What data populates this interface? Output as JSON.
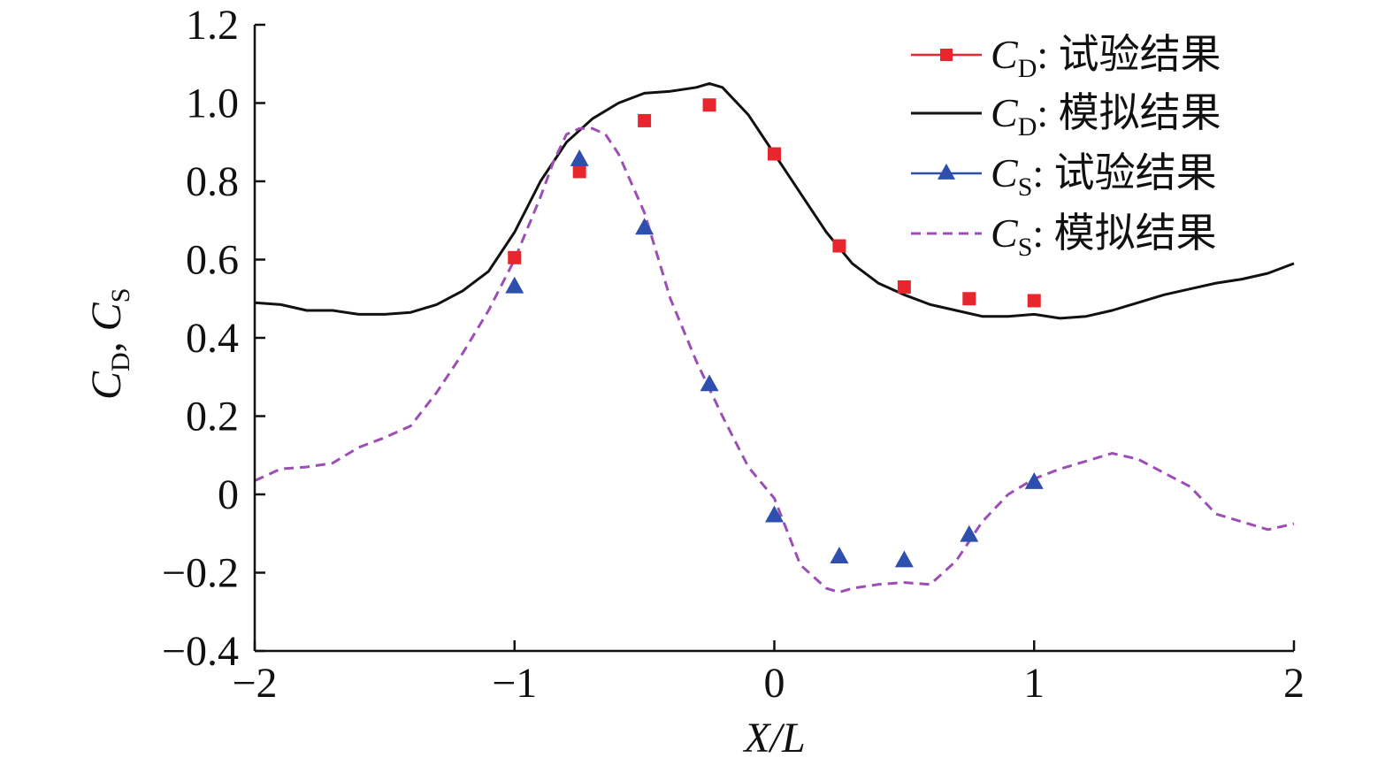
{
  "chart_data": {
    "type": "line",
    "title": "",
    "xlabel": "X/L",
    "ylabel_parts": [
      "C",
      "D",
      ", ",
      "C",
      "S"
    ],
    "xlim": [
      -2,
      2
    ],
    "ylim": [
      -0.4,
      1.2
    ],
    "xticks": [
      -2,
      -1,
      0,
      1,
      2
    ],
    "xtick_labels": [
      "−2",
      "−1",
      "0",
      "1",
      "2"
    ],
    "yticks": [
      -0.4,
      -0.2,
      0,
      0.2,
      0.4,
      0.6,
      0.8,
      1.0,
      1.2
    ],
    "ytick_labels": [
      "−0.4",
      "−0.2",
      "0",
      "0.2",
      "0.4",
      "0.6",
      "0.8",
      "1.0",
      "1.2"
    ],
    "grid": false,
    "legend_position": "top-right",
    "series": [
      {
        "name": "CD: 试验结果",
        "legend": {
          "sym": "C",
          "sub": "D",
          "text": ": 试验结果"
        },
        "kind": "markers",
        "marker": "square",
        "color": "#e8262d",
        "x": [
          -1.0,
          -0.75,
          -0.5,
          -0.25,
          0.0,
          0.25,
          0.5,
          0.75,
          1.0
        ],
        "y": [
          0.605,
          0.825,
          0.955,
          0.995,
          0.87,
          0.635,
          0.53,
          0.5,
          0.495
        ]
      },
      {
        "name": "CD: 模拟结果",
        "legend": {
          "sym": "C",
          "sub": "D",
          "text": ": 模拟结果"
        },
        "kind": "line",
        "dash": "none",
        "color": "#111111",
        "x": [
          -2.0,
          -1.9,
          -1.8,
          -1.7,
          -1.6,
          -1.5,
          -1.4,
          -1.3,
          -1.2,
          -1.1,
          -1.0,
          -0.9,
          -0.8,
          -0.7,
          -0.6,
          -0.5,
          -0.4,
          -0.3,
          -0.25,
          -0.2,
          -0.1,
          0.0,
          0.1,
          0.2,
          0.3,
          0.4,
          0.5,
          0.6,
          0.7,
          0.8,
          0.9,
          1.0,
          1.1,
          1.2,
          1.3,
          1.4,
          1.5,
          1.6,
          1.7,
          1.8,
          1.9,
          2.0
        ],
        "y": [
          0.49,
          0.485,
          0.47,
          0.47,
          0.46,
          0.46,
          0.465,
          0.485,
          0.52,
          0.57,
          0.67,
          0.8,
          0.9,
          0.96,
          1.0,
          1.025,
          1.03,
          1.04,
          1.05,
          1.04,
          0.97,
          0.87,
          0.77,
          0.67,
          0.59,
          0.54,
          0.51,
          0.485,
          0.47,
          0.455,
          0.455,
          0.46,
          0.45,
          0.455,
          0.47,
          0.49,
          0.51,
          0.525,
          0.54,
          0.55,
          0.565,
          0.59
        ]
      },
      {
        "name": "CS: 试验结果",
        "legend": {
          "sym": "C",
          "sub": "S",
          "text": ": 试验结果"
        },
        "kind": "markers",
        "marker": "triangle",
        "color": "#2e4fae",
        "x": [
          -1.0,
          -0.75,
          -0.5,
          -0.25,
          0.0,
          0.25,
          0.5,
          0.75,
          1.0
        ],
        "y": [
          0.53,
          0.855,
          0.68,
          0.28,
          -0.055,
          -0.16,
          -0.17,
          -0.105,
          0.03
        ]
      },
      {
        "name": "CS: 模拟结果",
        "legend": {
          "sym": "C",
          "sub": "S",
          "text": ": 模拟结果"
        },
        "kind": "line",
        "dash": "11,7",
        "color": "#9b4fb5",
        "x": [
          -2.0,
          -1.9,
          -1.8,
          -1.7,
          -1.6,
          -1.5,
          -1.4,
          -1.3,
          -1.2,
          -1.1,
          -1.0,
          -0.9,
          -0.85,
          -0.8,
          -0.75,
          -0.7,
          -0.65,
          -0.6,
          -0.5,
          -0.4,
          -0.3,
          -0.2,
          -0.1,
          0.0,
          0.1,
          0.2,
          0.25,
          0.3,
          0.4,
          0.5,
          0.6,
          0.7,
          0.8,
          0.9,
          1.0,
          1.1,
          1.2,
          1.3,
          1.4,
          1.5,
          1.6,
          1.7,
          1.8,
          1.9,
          2.0
        ],
        "y": [
          0.035,
          0.065,
          0.07,
          0.08,
          0.12,
          0.145,
          0.175,
          0.26,
          0.36,
          0.47,
          0.6,
          0.76,
          0.85,
          0.92,
          0.935,
          0.935,
          0.92,
          0.87,
          0.72,
          0.5,
          0.34,
          0.2,
          0.07,
          -0.01,
          -0.18,
          -0.24,
          -0.25,
          -0.24,
          -0.23,
          -0.225,
          -0.23,
          -0.17,
          -0.07,
          0.0,
          0.04,
          0.065,
          0.085,
          0.105,
          0.09,
          0.055,
          0.02,
          -0.05,
          -0.07,
          -0.09,
          -0.075
        ]
      }
    ]
  }
}
